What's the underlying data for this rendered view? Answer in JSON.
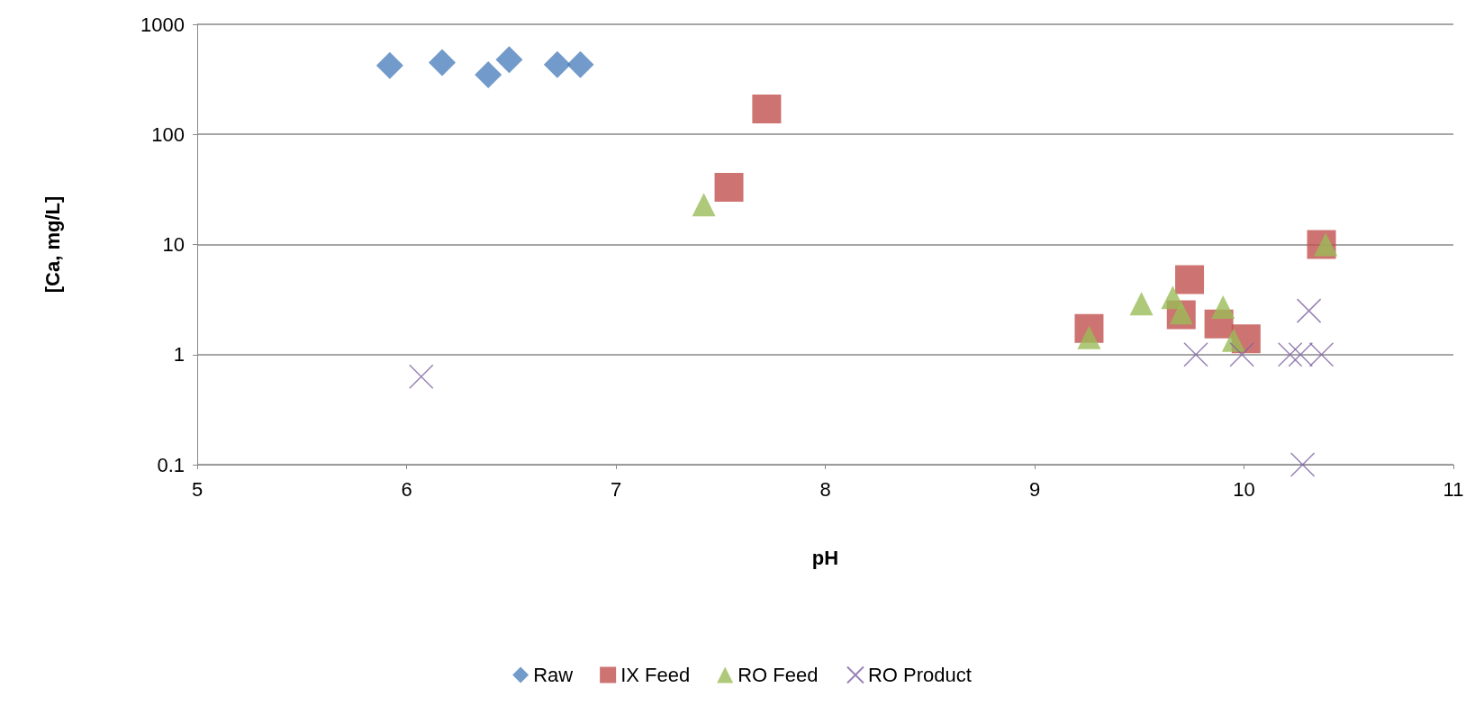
{
  "chart_data": {
    "type": "scatter",
    "xlabel": "pH",
    "ylabel": "[Ca, mg/L]",
    "log": "y",
    "xlim": [
      5,
      11
    ],
    "xticks": [
      5,
      6,
      7,
      8,
      9,
      10,
      11
    ],
    "ylim": [
      0.1,
      1000
    ],
    "yticks": [
      0.1,
      1,
      10,
      100,
      1000
    ],
    "grid": "y",
    "legend": "bottom",
    "series": [
      {
        "name": "Raw",
        "color": "#4f81bd",
        "marker": "diamond",
        "x": [
          5.92,
          6.17,
          6.39,
          6.49,
          6.72,
          6.83
        ],
        "values": [
          422,
          449,
          349,
          478,
          430,
          430
        ]
      },
      {
        "name": "IX Feed",
        "color": "#c0504d",
        "marker": "square",
        "x": [
          7.72,
          7.54,
          9.26,
          9.74,
          9.7,
          9.88,
          10.01,
          10.37
        ],
        "values": [
          170,
          33,
          1.73,
          4.8,
          2.3,
          1.9,
          1.39,
          10
        ]
      },
      {
        "name": "RO Feed",
        "color": "#9bbb59",
        "marker": "triangle",
        "x": [
          7.42,
          9.26,
          9.51,
          9.66,
          9.7,
          9.9,
          9.95,
          10.39
        ],
        "values": [
          23,
          1.43,
          2.9,
          3.3,
          2.4,
          2.7,
          1.35,
          10
        ]
      },
      {
        "name": "RO Product",
        "color": "#8064a2",
        "marker": "cross",
        "x": [
          6.07,
          9.77,
          9.99,
          10.22,
          10.27,
          10.37,
          10.31,
          10.28
        ],
        "values": [
          0.63,
          1,
          1,
          1,
          1,
          1,
          2.5,
          0.1
        ]
      }
    ]
  }
}
